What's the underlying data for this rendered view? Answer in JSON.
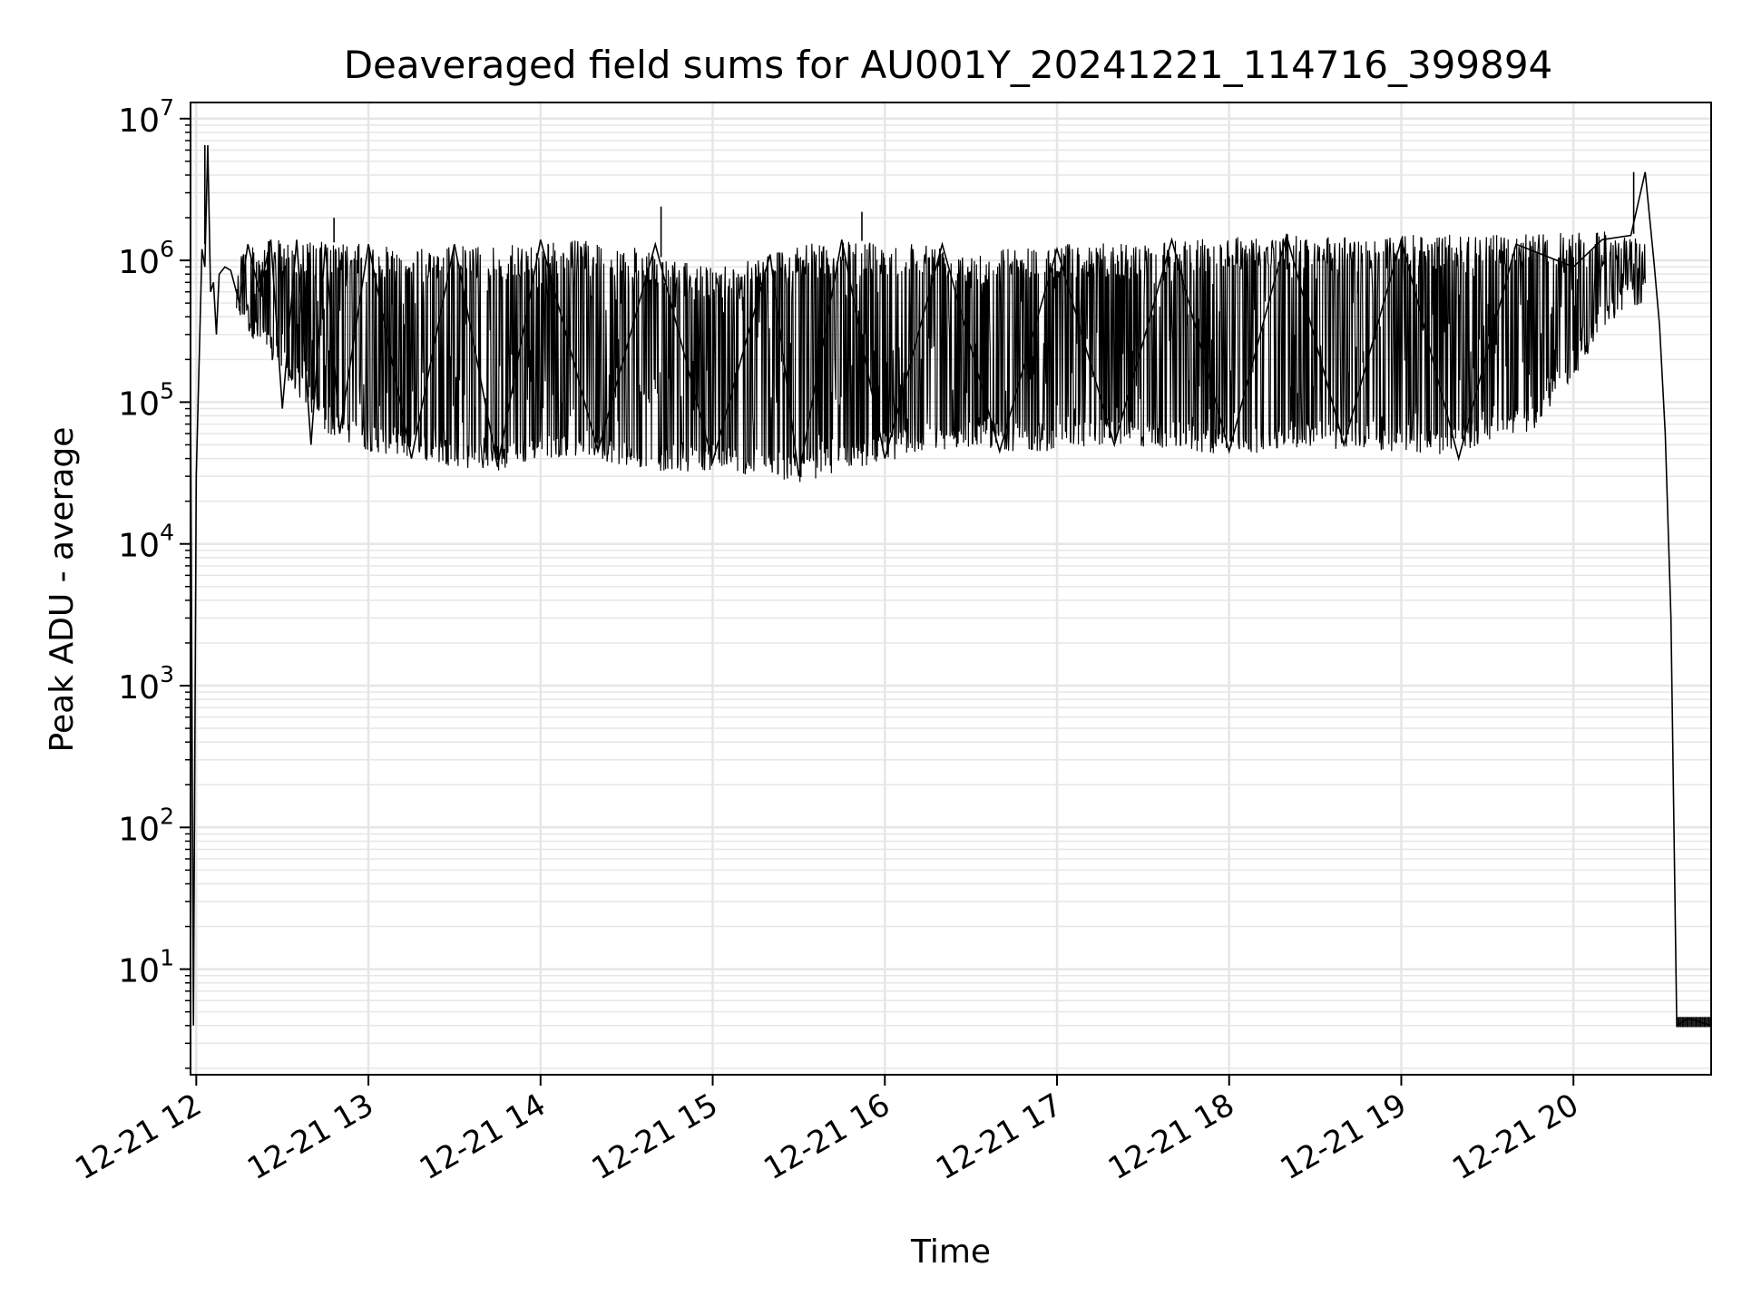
{
  "chart_data": {
    "type": "line",
    "title": "Deaveraged field sums for AU001Y_20241221_114716_399894",
    "xlabel": "Time",
    "ylabel": "Peak ADU - average",
    "y_scale": "log",
    "ylim": [
      1.8,
      13000000
    ],
    "xlim": [
      "2024-12-21 11:58",
      "2024-12-21 20:48"
    ],
    "grid": "major and minor",
    "line_color": "#000000",
    "grid_color": "#e6e6e6",
    "x_ticks": [
      {
        "value": "2024-12-21 12:00",
        "label": "12-21 12"
      },
      {
        "value": "2024-12-21 13:00",
        "label": "12-21 13"
      },
      {
        "value": "2024-12-21 14:00",
        "label": "12-21 14"
      },
      {
        "value": "2024-12-21 15:00",
        "label": "12-21 15"
      },
      {
        "value": "2024-12-21 16:00",
        "label": "12-21 16"
      },
      {
        "value": "2024-12-21 17:00",
        "label": "12-21 17"
      },
      {
        "value": "2024-12-21 18:00",
        "label": "12-21 18"
      },
      {
        "value": "2024-12-21 19:00",
        "label": "12-21 19"
      },
      {
        "value": "2024-12-21 20:00",
        "label": "12-21 20"
      }
    ],
    "y_ticks": [
      {
        "value": 10,
        "base": "10",
        "exp": "1"
      },
      {
        "value": 100,
        "base": "10",
        "exp": "2"
      },
      {
        "value": 1000,
        "base": "10",
        "exp": "3"
      },
      {
        "value": 10000,
        "base": "10",
        "exp": "4"
      },
      {
        "value": 100000,
        "base": "10",
        "exp": "5"
      },
      {
        "value": 1000000,
        "base": "10",
        "exp": "6"
      },
      {
        "value": 10000000,
        "base": "10",
        "exp": "7"
      }
    ],
    "series": [
      {
        "x": [
          "2024-12-21 11:58",
          "2024-12-21 11:59",
          "2024-12-21 12:00",
          "2024-12-21 12:02",
          "2024-12-21 12:03",
          "2024-12-21 12:04",
          "2024-12-21 12:05",
          "2024-12-21 12:06",
          "2024-12-21 12:07",
          "2024-12-21 12:08",
          "2024-12-21 12:10",
          "2024-12-21 12:12",
          "2024-12-21 12:15",
          "2024-12-21 12:18",
          "2024-12-21 12:22",
          "2024-12-21 12:26",
          "2024-12-21 12:30",
          "2024-12-21 12:35",
          "2024-12-21 12:40",
          "2024-12-21 12:45",
          "2024-12-21 12:50",
          "2024-12-21 13:00",
          "2024-12-21 13:15",
          "2024-12-21 13:30",
          "2024-12-21 13:45",
          "2024-12-21 14:00",
          "2024-12-21 14:20",
          "2024-12-21 14:40",
          "2024-12-21 15:00",
          "2024-12-21 15:20",
          "2024-12-21 15:30",
          "2024-12-21 15:45",
          "2024-12-21 16:00",
          "2024-12-21 16:20",
          "2024-12-21 16:40",
          "2024-12-21 17:00",
          "2024-12-21 17:20",
          "2024-12-21 17:40",
          "2024-12-21 18:00",
          "2024-12-21 18:20",
          "2024-12-21 18:40",
          "2024-12-21 19:00",
          "2024-12-21 19:20",
          "2024-12-21 19:40",
          "2024-12-21 20:00",
          "2024-12-21 20:10",
          "2024-12-21 20:20",
          "2024-12-21 20:25",
          "2024-12-21 20:28",
          "2024-12-21 20:30",
          "2024-12-21 20:32",
          "2024-12-21 20:34",
          "2024-12-21 20:36",
          "2024-12-21 20:40",
          "2024-12-21 20:48"
        ],
        "y": [
          130000,
          4,
          30000,
          1200000,
          900000,
          6500000,
          600000,
          700000,
          300000,
          800000,
          900000,
          850000,
          500000,
          1300000,
          600000,
          1400000,
          90000,
          1400000,
          50000,
          1300000,
          60000,
          1300000,
          40000,
          1300000,
          35000,
          1400000,
          45000,
          1300000,
          38000,
          1100000,
          30000,
          1400000,
          40000,
          1300000,
          45000,
          1200000,
          50000,
          1400000,
          45000,
          1500000,
          50000,
          1400000,
          40000,
          1300000,
          900000,
          1400000,
          1500000,
          4200000,
          1000000,
          350000,
          60000,
          3000,
          4,
          4.5,
          4
        ]
      }
    ],
    "envelope": {
      "x": [
        "2024-12-21 12:14",
        "2024-12-21 12:30",
        "2024-12-21 12:45",
        "2024-12-21 13:00",
        "2024-12-21 13:15",
        "2024-12-21 13:30",
        "2024-12-21 13:45",
        "2024-12-21 14:00",
        "2024-12-21 14:15",
        "2024-12-21 14:30",
        "2024-12-21 14:45",
        "2024-12-21 15:00",
        "2024-12-21 15:15",
        "2024-12-21 15:30",
        "2024-12-21 15:45",
        "2024-12-21 16:00",
        "2024-12-21 16:15",
        "2024-12-21 16:30",
        "2024-12-21 16:45",
        "2024-12-21 17:00",
        "2024-12-21 17:15",
        "2024-12-21 17:30",
        "2024-12-21 17:45",
        "2024-12-21 18:00",
        "2024-12-21 18:15",
        "2024-12-21 18:30",
        "2024-12-21 18:45",
        "2024-12-21 19:00",
        "2024-12-21 19:15",
        "2024-12-21 19:30",
        "2024-12-21 19:45",
        "2024-12-21 20:00",
        "2024-12-21 20:15",
        "2024-12-21 20:25"
      ],
      "low": [
        400000,
        150000,
        60000,
        45000,
        40000,
        35000,
        32000,
        40000,
        42000,
        35000,
        32000,
        33000,
        30000,
        27000,
        32000,
        38000,
        45000,
        48000,
        45000,
        45000,
        50000,
        48000,
        45000,
        42000,
        45000,
        48000,
        45000,
        45000,
        42000,
        50000,
        60000,
        150000,
        400000,
        500000
      ],
      "high": [
        1300000,
        1400000,
        1350000,
        1300000,
        1200000,
        1300000,
        1250000,
        1350000,
        1400000,
        1300000,
        1000000,
        900000,
        1100000,
        1300000,
        1350000,
        1400000,
        1350000,
        1200000,
        1250000,
        1300000,
        1350000,
        1300000,
        1400000,
        1500000,
        1550000,
        1500000,
        1450000,
        1500000,
        1550000,
        1500000,
        1550000,
        1600000,
        1600000,
        1500000
      ],
      "spikes": [
        {
          "x": "2024-12-21 12:03",
          "y": 6500000
        },
        {
          "x": "2024-12-21 12:48",
          "y": 2000000
        },
        {
          "x": "2024-12-21 14:42",
          "y": 2400000
        },
        {
          "x": "2024-12-21 15:52",
          "y": 2200000
        },
        {
          "x": "2024-12-21 20:21",
          "y": 4200000
        }
      ]
    }
  }
}
